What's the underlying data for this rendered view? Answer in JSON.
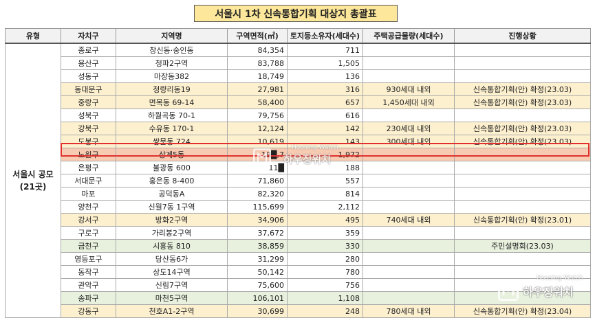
{
  "title": "서울시 1차 신속통합기획 대상지 총괄표",
  "headers": [
    "유형",
    "자치구",
    "지역명",
    "구역면적(㎡)",
    "토지등소유자(세대수)",
    "주택공급물량(세대수)",
    "진행상황"
  ],
  "type_label_line1": "서울시 공모",
  "type_label_line2": "(21곳)",
  "rows": [
    {
      "gu": "종로구",
      "area_name": "창신동·숭인동",
      "size": "84,354",
      "owners": "711",
      "supply": "",
      "status": "",
      "style": "w"
    },
    {
      "gu": "용산구",
      "area_name": "청파2구역",
      "size": "83,788",
      "owners": "1,505",
      "supply": "",
      "status": "",
      "style": "w"
    },
    {
      "gu": "성동구",
      "area_name": "마장동382",
      "size": "18,749",
      "owners": "136",
      "supply": "",
      "status": "",
      "style": "w"
    },
    {
      "gu": "동대문구",
      "area_name": "청량리동19",
      "size": "27,981",
      "owners": "316",
      "supply": "930세대 내외",
      "status": "신속통합기획(안) 확정(23.03)",
      "style": "y"
    },
    {
      "gu": "중랑구",
      "area_name": "면목동 69-14",
      "size": "58,400",
      "owners": "657",
      "supply": "1,450세대 내외",
      "status": "신속통합기획(안) 확정(23.03)",
      "style": "y"
    },
    {
      "gu": "성북구",
      "area_name": "하월곡동 70-1",
      "size": "79,756",
      "owners": "616",
      "supply": "",
      "status": "",
      "style": "w"
    },
    {
      "gu": "강북구",
      "area_name": "수유동 170-1",
      "size": "12,124",
      "owners": "142",
      "supply": "230세대 내외",
      "status": "신속통합기획(안) 확정(23.03)",
      "style": "y"
    },
    {
      "gu": "도봉구",
      "area_name": "쌍문동 724",
      "size": "10,619",
      "owners": "143",
      "supply": "300세대 내외",
      "status": "신속통합기획(안) 확정(23.03)",
      "style": "y"
    },
    {
      "gu": "노원구",
      "area_name": "상계5동",
      "size": "19█,7",
      "owners": "1,972",
      "supply": "",
      "status": "",
      "style": "hl"
    },
    {
      "gu": "은평구",
      "area_name": "불광동 600",
      "size": "11█",
      "owners": "188",
      "supply": "",
      "status": "",
      "style": "w"
    },
    {
      "gu": "서대문구",
      "area_name": "홍은동 8-400",
      "size": "71,860",
      "owners": "557",
      "supply": "",
      "status": "",
      "style": "w"
    },
    {
      "gu": "마포",
      "area_name": "공덕동A",
      "size": "82,320",
      "owners": "814",
      "supply": "",
      "status": "",
      "style": "w"
    },
    {
      "gu": "양천구",
      "area_name": "신월7동 1구역",
      "size": "115,699",
      "owners": "2,112",
      "supply": "",
      "status": "",
      "style": "w"
    },
    {
      "gu": "강서구",
      "area_name": "방화2구역",
      "size": "34,906",
      "owners": "495",
      "supply": "740세대 내외",
      "status": "신속통합기획(안) 확정(23.01)",
      "style": "y"
    },
    {
      "gu": "구로구",
      "area_name": "가리봉2구역",
      "size": "37,672",
      "owners": "359",
      "supply": "",
      "status": "",
      "style": "w"
    },
    {
      "gu": "금천구",
      "area_name": "시흥동 810",
      "size": "38,859",
      "owners": "330",
      "supply": "",
      "status": "주민설명회(23.03)",
      "style": "g"
    },
    {
      "gu": "영등포구",
      "area_name": "당산동6가",
      "size": "31,299",
      "owners": "280",
      "supply": "",
      "status": "",
      "style": "w"
    },
    {
      "gu": "동작구",
      "area_name": "상도14구역",
      "size": "50,142",
      "owners": "780",
      "supply": "",
      "status": "",
      "style": "w"
    },
    {
      "gu": "관악구",
      "area_name": "신림7구역",
      "size": "75,600",
      "owners": "756",
      "supply": "",
      "status": "",
      "style": "w"
    },
    {
      "gu": "송파구",
      "area_name": "마천5구역",
      "size": "106,101",
      "owners": "1,108",
      "supply": "",
      "status": "",
      "style": "g"
    },
    {
      "gu": "강동구",
      "area_name": "천호A1-2구역",
      "size": "30,699",
      "owners": "248",
      "supply": "780세대 내외",
      "status": "신속통합기획(안) 확정(23.04)",
      "style": "y"
    }
  ],
  "watermark": {
    "en": "Housing Watch",
    "ko": "하우징워치"
  },
  "colors": {
    "title_bg": "#fde79a",
    "confirmed_row": "#fdf0cf",
    "briefing_row": "#e7f1dd",
    "highlight_row": "#f7cbb2",
    "highlight_border": "#e0312f"
  }
}
